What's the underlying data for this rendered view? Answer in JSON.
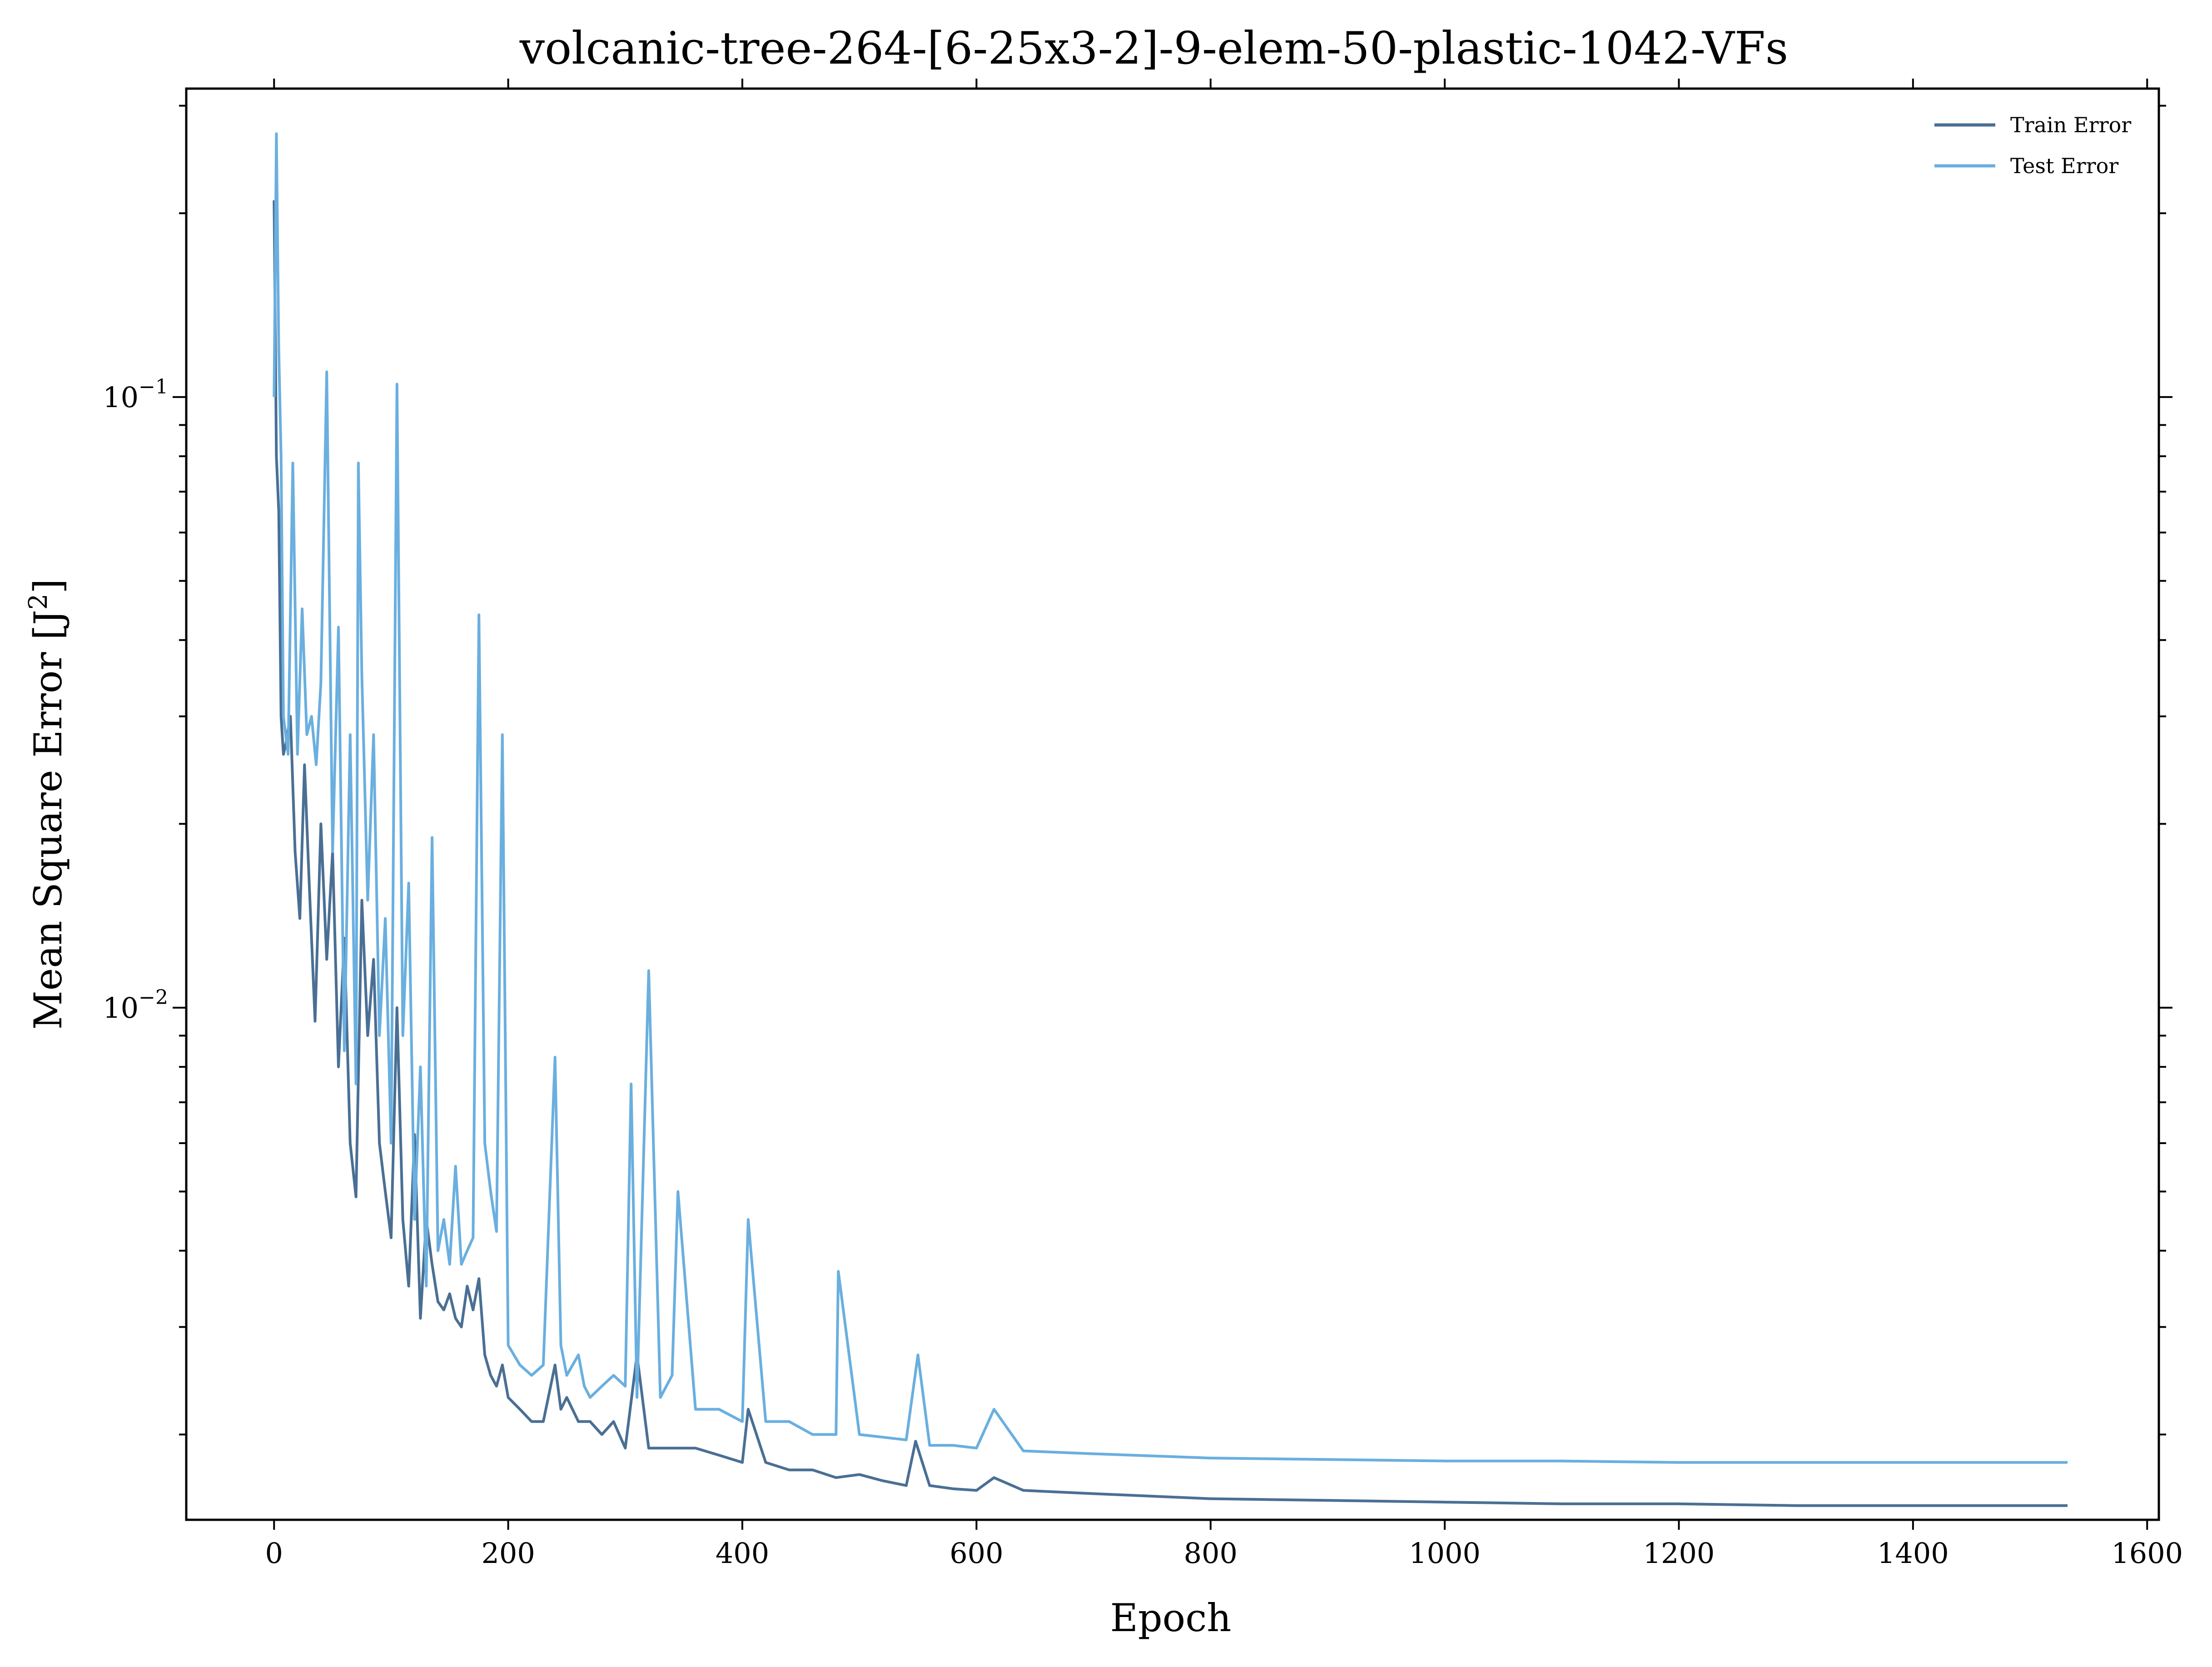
{
  "chart_data": {
    "type": "line",
    "title": "volcanic-tree-264-[6-25x3-2]-9-elem-50-plastic-1042-VFs",
    "xlabel": "Epoch",
    "ylabel_main": "Mean Square Error [J",
    "ylabel_sup": "2",
    "ylabel_close": "]",
    "xlim": [
      -75,
      1610
    ],
    "ylim": [
      0.00145,
      0.32
    ],
    "yscale": "log",
    "grid": false,
    "legend_position": "top-right",
    "x_ticks": [
      0,
      200,
      400,
      600,
      800,
      1000,
      1200,
      1400,
      1600
    ],
    "x_tick_labels": [
      "0",
      "200",
      "400",
      "600",
      "800",
      "1000",
      "1200",
      "1400",
      "1600"
    ],
    "y_major_ticks": [
      {
        "value": 0.1,
        "base": "10",
        "exp": "−1"
      },
      {
        "value": 0.01,
        "base": "10",
        "exp": "−2"
      }
    ],
    "y_minor_ticks": [
      0.002,
      0.003,
      0.004,
      0.005,
      0.006,
      0.007,
      0.008,
      0.009,
      0.02,
      0.03,
      0.04,
      0.05,
      0.06,
      0.07,
      0.08,
      0.09,
      0.2,
      0.3
    ],
    "series": [
      {
        "name": "Train Error",
        "color": "#4a6f94",
        "x": [
          0,
          2,
          4,
          6,
          8,
          10,
          14,
          18,
          22,
          26,
          30,
          35,
          40,
          45,
          50,
          55,
          60,
          65,
          70,
          75,
          80,
          85,
          90,
          95,
          100,
          105,
          110,
          115,
          120,
          125,
          130,
          135,
          140,
          145,
          150,
          155,
          160,
          165,
          170,
          175,
          180,
          185,
          190,
          195,
          200,
          210,
          220,
          230,
          240,
          245,
          250,
          260,
          270,
          280,
          290,
          300,
          310,
          320,
          340,
          360,
          380,
          400,
          405,
          420,
          440,
          460,
          480,
          500,
          520,
          540,
          548,
          560,
          580,
          600,
          615,
          640,
          700,
          800,
          900,
          1000,
          1100,
          1200,
          1300,
          1400,
          1532
        ],
        "y": [
          0.21,
          0.08,
          0.065,
          0.03,
          0.026,
          0.027,
          0.03,
          0.018,
          0.014,
          0.025,
          0.016,
          0.0095,
          0.02,
          0.012,
          0.018,
          0.008,
          0.013,
          0.006,
          0.0049,
          0.015,
          0.009,
          0.012,
          0.006,
          0.005,
          0.0042,
          0.01,
          0.0045,
          0.0035,
          0.0062,
          0.0031,
          0.0045,
          0.0038,
          0.0033,
          0.0032,
          0.0034,
          0.0031,
          0.003,
          0.0035,
          0.0032,
          0.0036,
          0.0027,
          0.0025,
          0.0024,
          0.0026,
          0.0023,
          0.0022,
          0.0021,
          0.0021,
          0.0026,
          0.0022,
          0.0023,
          0.0021,
          0.0021,
          0.002,
          0.0021,
          0.0019,
          0.0027,
          0.0019,
          0.0019,
          0.0019,
          0.00185,
          0.0018,
          0.0022,
          0.0018,
          0.00175,
          0.00175,
          0.0017,
          0.00172,
          0.00168,
          0.00165,
          0.00195,
          0.00165,
          0.00163,
          0.00162,
          0.0017,
          0.00162,
          0.0016,
          0.00157,
          0.00156,
          0.00155,
          0.00154,
          0.00154,
          0.00153,
          0.00153,
          0.00153
        ]
      },
      {
        "name": "Test Error",
        "color": "#6aafdf",
        "x": [
          0,
          2,
          4,
          6,
          8,
          12,
          16,
          20,
          24,
          28,
          32,
          36,
          40,
          45,
          50,
          55,
          60,
          65,
          70,
          72,
          75,
          80,
          85,
          90,
          95,
          100,
          105,
          110,
          115,
          120,
          125,
          130,
          135,
          140,
          145,
          150,
          155,
          160,
          165,
          170,
          175,
          180,
          185,
          190,
          195,
          200,
          210,
          220,
          230,
          240,
          245,
          250,
          260,
          265,
          270,
          280,
          290,
          300,
          305,
          310,
          320,
          330,
          340,
          345,
          360,
          380,
          400,
          405,
          420,
          440,
          460,
          480,
          482,
          500,
          520,
          540,
          550,
          560,
          580,
          600,
          615,
          640,
          700,
          800,
          900,
          1000,
          1100,
          1200,
          1300,
          1400,
          1532
        ],
        "y": [
          0.1,
          0.27,
          0.12,
          0.08,
          0.03,
          0.026,
          0.078,
          0.026,
          0.045,
          0.028,
          0.03,
          0.025,
          0.034,
          0.11,
          0.018,
          0.042,
          0.0085,
          0.028,
          0.0075,
          0.078,
          0.035,
          0.015,
          0.028,
          0.009,
          0.014,
          0.006,
          0.105,
          0.009,
          0.016,
          0.0045,
          0.008,
          0.0035,
          0.019,
          0.004,
          0.0045,
          0.0038,
          0.0055,
          0.0038,
          0.004,
          0.0042,
          0.044,
          0.006,
          0.005,
          0.0043,
          0.028,
          0.0028,
          0.0026,
          0.0025,
          0.0026,
          0.0083,
          0.0028,
          0.0025,
          0.0027,
          0.0024,
          0.0023,
          0.0024,
          0.0025,
          0.0024,
          0.0075,
          0.0023,
          0.0115,
          0.0023,
          0.0025,
          0.005,
          0.0022,
          0.0022,
          0.0021,
          0.0045,
          0.0021,
          0.0021,
          0.002,
          0.002,
          0.0037,
          0.002,
          0.00198,
          0.00196,
          0.0027,
          0.00192,
          0.00192,
          0.0019,
          0.0022,
          0.00188,
          0.00186,
          0.00183,
          0.00182,
          0.00181,
          0.00181,
          0.0018,
          0.0018,
          0.0018,
          0.0018
        ]
      }
    ]
  }
}
